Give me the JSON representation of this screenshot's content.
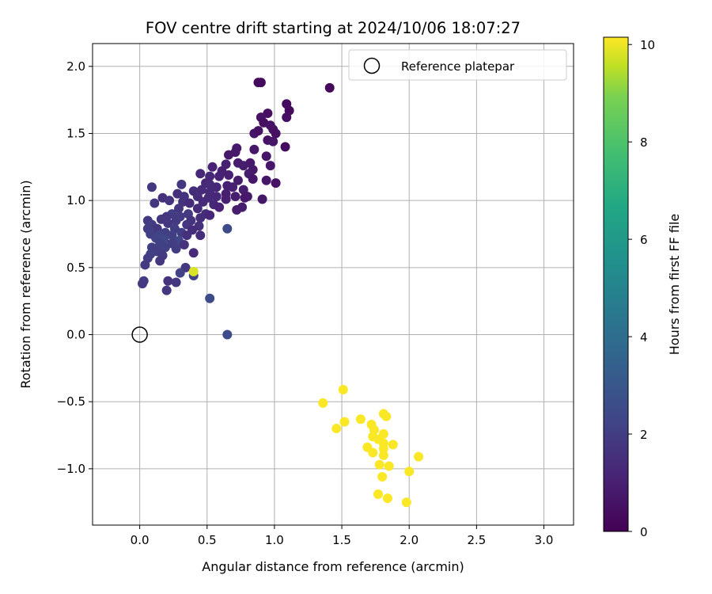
{
  "chart_data": {
    "type": "scatter",
    "title": "FOV centre drift starting at 2024/10/06 18:07:27",
    "xlabel": "Angular distance from reference (arcmin)",
    "ylabel": "Rotation from reference (arcmin)",
    "xlim": [
      -0.35,
      3.22
    ],
    "ylim": [
      -1.42,
      2.17
    ],
    "xticks": [
      0.0,
      0.5,
      1.0,
      1.5,
      2.0,
      2.5,
      3.0
    ],
    "yticks": [
      -1.0,
      -0.5,
      0.0,
      0.5,
      1.0,
      1.5,
      2.0
    ],
    "xtick_labels": [
      "0.0",
      "0.5",
      "1.0",
      "1.5",
      "2.0",
      "2.5",
      "3.0"
    ],
    "ytick_labels": [
      "−1.0",
      "−0.5",
      "0.0",
      "0.5",
      "1.0",
      "1.5",
      "2.0"
    ],
    "grid": true,
    "legend": {
      "position": "top-right",
      "entries": [
        "Reference platepar"
      ]
    },
    "colorbar": {
      "label": "Hours from first FF file",
      "range": [
        0,
        10.15
      ],
      "ticks": [
        0,
        2,
        4,
        6,
        8,
        10
      ],
      "tick_labels": [
        "0",
        "2",
        "4",
        "6",
        "8",
        "10"
      ],
      "colormap": "viridis"
    },
    "reference_point": {
      "x": 0.0,
      "y": 0.0
    },
    "series": [
      {
        "marker_color": "by hours",
        "points": [
          [
            0.9,
            1.88,
            0.3
          ],
          [
            0.88,
            1.88,
            0.3
          ],
          [
            1.41,
            1.84,
            0.2
          ],
          [
            1.09,
            1.72,
            0.3
          ],
          [
            1.11,
            1.67,
            0.3
          ],
          [
            0.95,
            1.65,
            0.4
          ],
          [
            1.09,
            1.62,
            0.4
          ],
          [
            0.9,
            1.62,
            0.5
          ],
          [
            0.92,
            1.58,
            0.4
          ],
          [
            0.97,
            1.56,
            0.5
          ],
          [
            0.99,
            1.53,
            0.5
          ],
          [
            1.01,
            1.5,
            0.4
          ],
          [
            0.85,
            1.5,
            0.6
          ],
          [
            0.88,
            1.52,
            0.5
          ],
          [
            0.95,
            1.45,
            0.5
          ],
          [
            0.99,
            1.44,
            0.6
          ],
          [
            1.08,
            1.4,
            0.3
          ],
          [
            0.72,
            1.39,
            0.7
          ],
          [
            0.85,
            1.38,
            0.6
          ],
          [
            0.71,
            1.36,
            0.7
          ],
          [
            0.66,
            1.34,
            0.7
          ],
          [
            0.94,
            1.33,
            0.6
          ],
          [
            0.73,
            1.28,
            0.8
          ],
          [
            0.82,
            1.28,
            0.7
          ],
          [
            0.97,
            1.26,
            0.6
          ],
          [
            0.64,
            1.27,
            0.9
          ],
          [
            0.77,
            1.26,
            0.8
          ],
          [
            0.54,
            1.25,
            1.0
          ],
          [
            0.61,
            1.22,
            0.9
          ],
          [
            0.84,
            1.23,
            0.7
          ],
          [
            0.45,
            1.2,
            1.1
          ],
          [
            0.52,
            1.18,
            1.1
          ],
          [
            0.81,
            1.2,
            0.8
          ],
          [
            0.59,
            1.18,
            1.0
          ],
          [
            0.66,
            1.19,
            0.9
          ],
          [
            0.84,
            1.16,
            0.6
          ],
          [
            0.73,
            1.15,
            0.8
          ],
          [
            0.94,
            1.15,
            0.6
          ],
          [
            1.01,
            1.13,
            0.5
          ],
          [
            0.49,
            1.13,
            1.1
          ],
          [
            0.52,
            1.12,
            1.2
          ],
          [
            0.31,
            1.12,
            1.6
          ],
          [
            0.65,
            1.11,
            0.9
          ],
          [
            0.57,
            1.1,
            1.1
          ],
          [
            0.69,
            1.1,
            0.9
          ],
          [
            0.09,
            1.1,
            1.6
          ],
          [
            0.77,
            1.08,
            0.8
          ],
          [
            0.46,
            1.08,
            1.2
          ],
          [
            0.4,
            1.07,
            1.3
          ],
          [
            0.52,
            1.06,
            1.2
          ],
          [
            0.28,
            1.05,
            1.4
          ],
          [
            0.64,
            1.05,
            0.9
          ],
          [
            0.71,
            1.03,
            0.8
          ],
          [
            0.8,
            1.03,
            0.7
          ],
          [
            0.33,
            1.03,
            1.5
          ],
          [
            0.17,
            1.02,
            1.4
          ],
          [
            0.43,
            1.03,
            1.3
          ],
          [
            0.51,
            1.02,
            1.2
          ],
          [
            0.57,
            1.03,
            1.1
          ],
          [
            0.78,
            1.02,
            0.7
          ],
          [
            0.64,
            1.01,
            0.9
          ],
          [
            0.91,
            1.01,
            0.6
          ],
          [
            0.22,
            1.0,
            1.5
          ],
          [
            0.32,
            0.99,
            1.5
          ],
          [
            0.11,
            0.98,
            1.6
          ],
          [
            0.37,
            0.98,
            1.3
          ],
          [
            0.47,
            0.99,
            1.2
          ],
          [
            0.55,
            0.97,
            1.1
          ],
          [
            0.59,
            0.95,
            1.0
          ],
          [
            0.76,
            0.95,
            0.8
          ],
          [
            0.29,
            0.94,
            1.6
          ],
          [
            0.43,
            0.94,
            1.3
          ],
          [
            0.72,
            0.93,
            0.8
          ],
          [
            0.24,
            0.9,
            1.8
          ],
          [
            0.36,
            0.9,
            1.7
          ],
          [
            0.49,
            0.9,
            1.3
          ],
          [
            0.52,
            0.89,
            1.1
          ],
          [
            0.2,
            0.88,
            1.6
          ],
          [
            0.3,
            0.88,
            1.7
          ],
          [
            0.45,
            0.87,
            1.3
          ],
          [
            0.06,
            0.85,
            1.7
          ],
          [
            0.16,
            0.86,
            1.6
          ],
          [
            0.27,
            0.85,
            1.7
          ],
          [
            0.38,
            0.85,
            1.5
          ],
          [
            0.09,
            0.82,
            1.8
          ],
          [
            0.21,
            0.83,
            1.6
          ],
          [
            0.35,
            0.82,
            1.6
          ],
          [
            0.44,
            0.81,
            1.4
          ],
          [
            0.06,
            0.79,
            1.8
          ],
          [
            0.13,
            0.79,
            1.6
          ],
          [
            0.26,
            0.79,
            1.8
          ],
          [
            0.65,
            0.79,
            2.3
          ],
          [
            0.39,
            0.78,
            1.3
          ],
          [
            0.19,
            0.76,
            1.9
          ],
          [
            0.31,
            0.76,
            1.8
          ],
          [
            0.08,
            0.75,
            1.9
          ],
          [
            0.14,
            0.74,
            2.0
          ],
          [
            0.24,
            0.74,
            1.9
          ],
          [
            0.35,
            0.74,
            1.4
          ],
          [
            0.45,
            0.74,
            1.3
          ],
          [
            0.12,
            0.72,
            2.0
          ],
          [
            0.18,
            0.71,
            2.1
          ],
          [
            0.29,
            0.7,
            2.1
          ],
          [
            0.15,
            0.68,
            1.9
          ],
          [
            0.24,
            0.68,
            1.8
          ],
          [
            0.33,
            0.67,
            1.5
          ],
          [
            0.09,
            0.65,
            1.8
          ],
          [
            0.19,
            0.65,
            1.9
          ],
          [
            0.27,
            0.64,
            1.8
          ],
          [
            0.13,
            0.62,
            1.8
          ],
          [
            0.4,
            0.61,
            1.2
          ],
          [
            0.08,
            0.6,
            1.9
          ],
          [
            0.17,
            0.59,
            1.7
          ],
          [
            0.06,
            0.57,
            1.8
          ],
          [
            0.15,
            0.55,
            1.6
          ],
          [
            0.04,
            0.52,
            1.7
          ],
          [
            0.34,
            0.5,
            1.6
          ],
          [
            0.3,
            0.46,
            2.0
          ],
          [
            0.4,
            0.44,
            2.0
          ],
          [
            0.4,
            0.47,
            9.6
          ],
          [
            0.21,
            0.4,
            1.5
          ],
          [
            0.27,
            0.39,
            1.6
          ],
          [
            0.03,
            0.4,
            1.8
          ],
          [
            0.02,
            0.38,
            1.7
          ],
          [
            0.2,
            0.33,
            1.6
          ],
          [
            0.52,
            0.27,
            2.3
          ],
          [
            0.65,
            0.0,
            2.3
          ],
          [
            1.51,
            -0.41,
            10.1
          ],
          [
            1.36,
            -0.51,
            10.1
          ],
          [
            1.81,
            -0.59,
            10.1
          ],
          [
            1.83,
            -0.61,
            10.1
          ],
          [
            1.64,
            -0.63,
            10.1
          ],
          [
            1.52,
            -0.65,
            10.1
          ],
          [
            1.72,
            -0.67,
            10.1
          ],
          [
            1.46,
            -0.7,
            10.1
          ],
          [
            1.74,
            -0.71,
            10.1
          ],
          [
            1.81,
            -0.74,
            10.1
          ],
          [
            1.73,
            -0.76,
            10.1
          ],
          [
            1.77,
            -0.78,
            10.1
          ],
          [
            1.81,
            -0.81,
            10.1
          ],
          [
            1.88,
            -0.82,
            10.1
          ],
          [
            1.69,
            -0.84,
            10.1
          ],
          [
            1.81,
            -0.85,
            10.1
          ],
          [
            1.73,
            -0.88,
            10.1
          ],
          [
            1.81,
            -0.9,
            10.1
          ],
          [
            2.07,
            -0.91,
            10.1
          ],
          [
            1.78,
            -0.97,
            10.1
          ],
          [
            1.85,
            -0.98,
            10.1
          ],
          [
            2.0,
            -1.02,
            10.1
          ],
          [
            1.8,
            -1.06,
            10.1
          ],
          [
            1.77,
            -1.19,
            10.1
          ],
          [
            1.84,
            -1.22,
            10.1
          ],
          [
            1.98,
            -1.25,
            10.1
          ]
        ]
      }
    ]
  }
}
